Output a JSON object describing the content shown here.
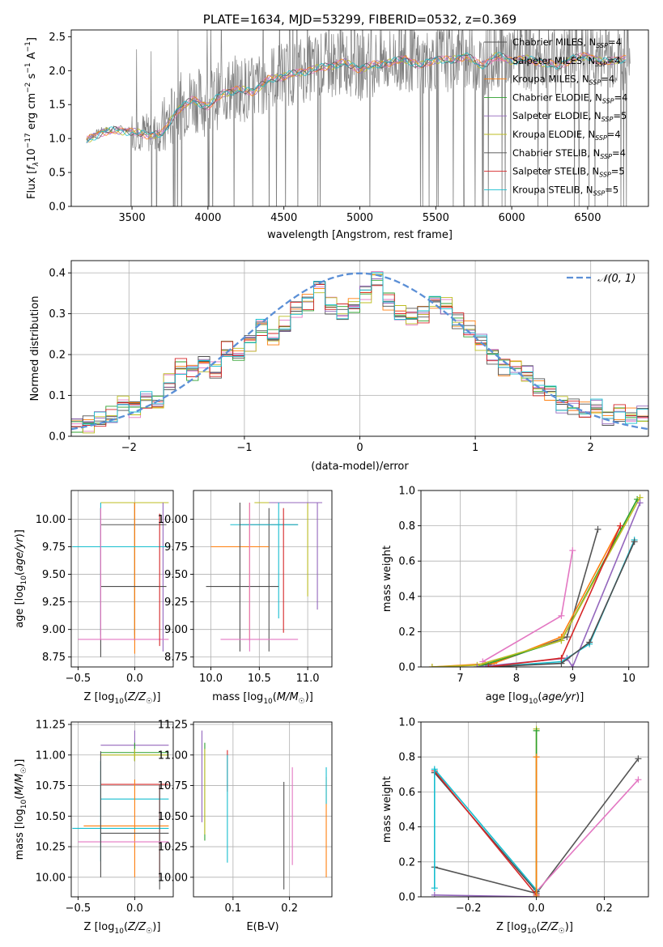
{
  "colors": {
    "Chabrier MILES": "#555555",
    "Salpeter MILES": "#e377c2",
    "Kroupa MILES": "#ff7f0e",
    "Chabrier ELODIE": "#2ca02c",
    "Salpeter ELODIE": "#9467bd",
    "Kroupa ELODIE": "#bcbd22",
    "Chabrier STELIB": "#4d4d4d",
    "Salpeter STELIB": "#d62728",
    "Kroupa STELIB": "#17becf",
    "gauss": "#5b8fd6"
  },
  "chart_data": [
    {
      "id": "spectrum",
      "type": "line",
      "title": "PLATE=1634, MJD=53299, FIBERID=0532, z=0.369",
      "xlabel": "wavelength [Angstrom, rest frame]",
      "ylabel": "Flux [f_λ 10^-17 erg cm^-2 s^-1 A^-1]",
      "xlim": [
        3100,
        6900
      ],
      "ylim": [
        0,
        2.6
      ],
      "xticks": [
        3500,
        4000,
        4500,
        5000,
        5500,
        6000,
        6500
      ],
      "yticks": [
        0.0,
        0.5,
        1.0,
        1.5,
        2.0,
        2.5
      ],
      "xtick_labels": [
        "3500",
        "4000",
        "4500",
        "5000",
        "5500",
        "6000",
        "6500"
      ],
      "ytick_labels": [
        "0.0",
        "0.5",
        "1.0",
        "1.5",
        "2.0",
        "2.5"
      ],
      "grid": false,
      "legend_position": "top-right",
      "data": {
        "x": [
          3200,
          3300,
          3400,
          3500,
          3600,
          3700,
          3800,
          3900,
          4000,
          4100,
          4200,
          4300,
          4400,
          4500,
          4600,
          4700,
          4800,
          4900,
          5000,
          5100,
          5200,
          5300,
          5400,
          5500,
          5600,
          5700,
          5800,
          5900,
          6000,
          6100,
          6200,
          6300,
          6400,
          6500,
          6600,
          6700,
          6750
        ],
        "y": [
          1.0,
          1.12,
          1.15,
          1.13,
          1.08,
          1.1,
          1.45,
          1.6,
          1.5,
          1.7,
          1.75,
          1.72,
          1.9,
          1.95,
          2.0,
          2.05,
          2.1,
          2.15,
          2.05,
          2.12,
          2.15,
          2.2,
          2.1,
          2.2,
          2.18,
          2.25,
          2.1,
          2.25,
          2.18,
          2.2,
          2.15,
          2.1,
          2.2,
          2.25,
          2.15,
          2.2,
          2.2
        ]
      },
      "legend": [
        {
          "name": "Chabrier MILES, N_SSP=4",
          "series": "Chabrier MILES"
        },
        {
          "name": "Salpeter MILES, N_SSP=4",
          "series": "Salpeter MILES"
        },
        {
          "name": "Kroupa MILES, N_SSP=4",
          "series": "Kroupa MILES"
        },
        {
          "name": "Chabrier ELODIE, N_SSP=4",
          "series": "Chabrier ELODIE"
        },
        {
          "name": "Salpeter ELODIE, N_SSP=5",
          "series": "Salpeter ELODIE"
        },
        {
          "name": "Kroupa ELODIE, N_SSP=4",
          "series": "Kroupa ELODIE"
        },
        {
          "name": "Chabrier STELIB, N_SSP=4",
          "series": "Chabrier STELIB"
        },
        {
          "name": "Salpeter STELIB, N_SSP=5",
          "series": "Salpeter STELIB"
        },
        {
          "name": "Kroupa STELIB, N_SSP=5",
          "series": "Kroupa STELIB"
        }
      ]
    },
    {
      "id": "residuals",
      "type": "histogram",
      "xlabel": "(data-model)/error",
      "ylabel": "Normed distribution",
      "xlim": [
        -2.5,
        2.5
      ],
      "ylim": [
        0,
        0.43
      ],
      "xticks": [
        -2,
        -1,
        0,
        1,
        2
      ],
      "yticks": [
        0.0,
        0.1,
        0.2,
        0.3,
        0.4
      ],
      "xtick_labels": [
        "−2",
        "−1",
        "0",
        "1",
        "2"
      ],
      "ytick_labels": [
        "0.0",
        "0.1",
        "0.2",
        "0.3",
        "0.4"
      ],
      "grid": true,
      "legend_position": "top-right",
      "legend": [
        "𝒩(0, 1)"
      ],
      "bin_width": 0.1,
      "bin_start": -2.5,
      "values": [
        0.03,
        0.03,
        0.04,
        0.05,
        0.08,
        0.07,
        0.09,
        0.08,
        0.13,
        0.17,
        0.16,
        0.18,
        0.16,
        0.21,
        0.2,
        0.23,
        0.27,
        0.24,
        0.27,
        0.31,
        0.33,
        0.37,
        0.32,
        0.3,
        0.32,
        0.35,
        0.39,
        0.33,
        0.3,
        0.29,
        0.3,
        0.33,
        0.32,
        0.28,
        0.26,
        0.23,
        0.2,
        0.17,
        0.17,
        0.15,
        0.12,
        0.11,
        0.08,
        0.07,
        0.06,
        0.07,
        0.05,
        0.06,
        0.05,
        0.05
      ],
      "gauss": {
        "mu": 0,
        "sigma": 1
      }
    },
    {
      "id": "age_vs_Z",
      "type": "errorbar",
      "xlabel": "Z [log10(Z/Z☉)]",
      "ylabel": "age  [log10(age/yr)]",
      "xlim": [
        -0.56,
        0.34
      ],
      "ylim": [
        8.66,
        10.26
      ],
      "xticks": [
        -0.5,
        0.0
      ],
      "yticks": [
        8.75,
        9.0,
        9.25,
        9.5,
        9.75,
        10.0
      ],
      "xtick_labels": [
        "−0.5",
        "0.0"
      ],
      "ytick_labels": [
        "8.75",
        "9.00",
        "9.25",
        "9.50",
        "9.75",
        "10.00"
      ],
      "grid": true,
      "points": [
        {
          "series": "Kroupa ELODIE",
          "x": 0.0,
          "y": 10.15,
          "xlo": -0.3,
          "xhi": 0.3,
          "ylo": 8.95,
          "yhi": 10.15
        },
        {
          "series": "Salpeter ELODIE",
          "x": 0.25,
          "y": 10.15,
          "xlo": 0.25,
          "xhi": 0.25,
          "ylo": 8.8,
          "yhi": 10.15
        },
        {
          "series": "Chabrier MILES",
          "x": 0.0,
          "y": 9.95,
          "xlo": -0.3,
          "xhi": 0.28,
          "ylo": 8.9,
          "yhi": 10.15
        },
        {
          "series": "Kroupa MILES",
          "x": 0.0,
          "y": 9.75,
          "xlo": -0.55,
          "xhi": 0.3,
          "ylo": 8.78,
          "yhi": 10.15
        },
        {
          "series": "Kroupa STELIB",
          "x": -0.3,
          "y": 9.75,
          "xlo": -0.55,
          "xhi": 0.3,
          "ylo": 8.95,
          "yhi": 10.15
        },
        {
          "series": "Chabrier STELIB",
          "x": -0.3,
          "y": 9.39,
          "xlo": -0.3,
          "xhi": 0.28,
          "ylo": 8.75,
          "yhi": 10.1
        },
        {
          "series": "Salpeter MILES",
          "x": -0.3,
          "y": 8.91,
          "xlo": -0.5,
          "xhi": 0.3,
          "ylo": 8.91,
          "yhi": 10.1
        },
        {
          "series": "Salpeter STELIB",
          "x": 0.22,
          "y": 9.95,
          "xlo": 0.22,
          "xhi": 0.22,
          "ylo": 8.85,
          "yhi": 10.05
        }
      ]
    },
    {
      "id": "age_vs_mass",
      "type": "errorbar",
      "xlabel": "mass [log10(M/M☉)]",
      "ylabel": "",
      "xlim": [
        9.82,
        11.25
      ],
      "ylim": [
        8.66,
        10.26
      ],
      "xticks": [
        10.0,
        10.5,
        11.0
      ],
      "yticks": [
        8.75,
        9.0,
        9.25,
        9.5,
        9.75,
        10.0
      ],
      "xtick_labels": [
        "10.0",
        "10.5",
        "11.0"
      ],
      "ytick_labels": [
        "8.75",
        "9.00",
        "9.25",
        "9.50",
        "9.75",
        "10.00"
      ],
      "grid": true,
      "points": [
        {
          "series": "Kroupa ELODIE",
          "x": 11.0,
          "y": 10.15,
          "xlo": 10.45,
          "xhi": 11.0,
          "ylo": 9.3,
          "yhi": 10.15
        },
        {
          "series": "Salpeter ELODIE",
          "x": 11.1,
          "y": 10.15,
          "xlo": 10.6,
          "xhi": 11.15,
          "ylo": 9.18,
          "yhi": 10.15
        },
        {
          "series": "Chabrier MILES",
          "x": 10.6,
          "y": 9.95,
          "xlo": 10.3,
          "xhi": 10.9,
          "ylo": 8.8,
          "yhi": 10.1
        },
        {
          "series": "Kroupa MILES",
          "x": 10.4,
          "y": 9.75,
          "xlo": 10.0,
          "xhi": 10.6,
          "ylo": 8.9,
          "yhi": 10.15
        },
        {
          "series": "Kroupa STELIB",
          "x": 10.7,
          "y": 9.95,
          "xlo": 10.2,
          "xhi": 10.9,
          "ylo": 9.1,
          "yhi": 10.15
        },
        {
          "series": "Chabrier STELIB",
          "x": 10.3,
          "y": 9.39,
          "xlo": 9.95,
          "xhi": 10.7,
          "ylo": 8.8,
          "yhi": 10.15
        },
        {
          "series": "Salpeter MILES",
          "x": 10.4,
          "y": 8.91,
          "xlo": 10.1,
          "xhi": 10.9,
          "ylo": 8.8,
          "yhi": 10.15
        },
        {
          "series": "Salpeter STELIB",
          "x": 10.75,
          "y": 10.1,
          "xlo": 10.75,
          "xhi": 10.75,
          "ylo": 8.97,
          "yhi": 10.1
        }
      ]
    },
    {
      "id": "massweight_vs_age",
      "type": "line",
      "xlabel": "age  [log10(age/yr)]",
      "ylabel": "mass weight",
      "xlim": [
        6.3,
        10.35
      ],
      "ylim": [
        0,
        1.0
      ],
      "xticks": [
        7,
        8,
        9,
        10
      ],
      "yticks": [
        0.0,
        0.2,
        0.4,
        0.6,
        0.8,
        1.0
      ],
      "xtick_labels": [
        "7",
        "8",
        "9",
        "10"
      ],
      "ytick_labels": [
        "0.0",
        "0.2",
        "0.4",
        "0.6",
        "0.8",
        "1.0"
      ],
      "grid": true,
      "series": [
        {
          "name": "Salpeter MILES",
          "x": [
            7.4,
            8.8,
            9.0
          ],
          "y": [
            0.03,
            0.29,
            0.66
          ]
        },
        {
          "name": "Chabrier MILES",
          "x": [
            7.5,
            8.9,
            9.45
          ],
          "y": [
            0.01,
            0.17,
            0.78
          ]
        },
        {
          "name": "Kroupa MILES",
          "x": [
            6.5,
            7.6,
            8.8,
            9.85
          ],
          "y": [
            0.0,
            0.02,
            0.17,
            0.8
          ]
        },
        {
          "name": "Chabrier ELODIE",
          "x": [
            7.3,
            8.8,
            10.15
          ],
          "y": [
            0.0,
            0.15,
            0.95
          ]
        },
        {
          "name": "Kroupa ELODIE",
          "x": [
            6.5,
            7.3,
            8.8,
            10.2
          ],
          "y": [
            0.0,
            0.01,
            0.15,
            0.96
          ]
        },
        {
          "name": "Salpeter ELODIE",
          "x": [
            7.3,
            8.9,
            9.0,
            10.2
          ],
          "y": [
            0.0,
            0.05,
            0.0,
            0.93
          ]
        },
        {
          "name": "Kroupa STELIB",
          "x": [
            7.5,
            8.8,
            9.3,
            10.1
          ],
          "y": [
            0.0,
            0.03,
            0.13,
            0.72
          ]
        },
        {
          "name": "Chabrier STELIB",
          "x": [
            7.5,
            8.8,
            9.3,
            10.1
          ],
          "y": [
            0.0,
            0.02,
            0.14,
            0.71
          ]
        },
        {
          "name": "Salpeter STELIB",
          "x": [
            7.5,
            8.8,
            9.85
          ],
          "y": [
            0.0,
            0.05,
            0.8
          ]
        }
      ]
    },
    {
      "id": "mass_vs_Z",
      "type": "errorbar",
      "xlabel": "Z [log10(Z/Z☉)]",
      "ylabel": "mass [log10(M/M☉)]",
      "xlim": [
        -0.56,
        0.34
      ],
      "ylim": [
        9.84,
        11.27
      ],
      "xticks": [
        -0.5,
        0.0
      ],
      "yticks": [
        10.0,
        10.25,
        10.5,
        10.75,
        11.0,
        11.25
      ],
      "xtick_labels": [
        "−0.5",
        "0.0"
      ],
      "ytick_labels": [
        "10.00",
        "10.25",
        "10.50",
        "10.75",
        "11.00",
        "11.25"
      ],
      "grid": true,
      "points": [
        {
          "series": "Salpeter ELODIE",
          "x": 0.0,
          "y": 11.08,
          "xlo": -0.3,
          "xhi": 0.3,
          "ylo": 10.95,
          "yhi": 11.2
        },
        {
          "series": "Chabrier ELODIE",
          "x": 0.0,
          "y": 11.02,
          "xlo": -0.3,
          "xhi": 0.3,
          "ylo": 10.95,
          "yhi": 11.1
        },
        {
          "series": "Kroupa ELODIE",
          "x": 0.0,
          "y": 11.0,
          "xlo": -0.3,
          "xhi": 0.3,
          "ylo": 10.95,
          "yhi": 11.05
        },
        {
          "series": "Salpeter STELIB",
          "x": 0.22,
          "y": 10.76,
          "xlo": -0.3,
          "xhi": 0.3,
          "ylo": 10.0,
          "yhi": 10.76
        },
        {
          "series": "Kroupa STELIB",
          "x": -0.3,
          "y": 10.64,
          "xlo": -0.3,
          "xhi": 0.3,
          "ylo": 10.13,
          "yhi": 10.95
        },
        {
          "series": "Kroupa MILES",
          "x": 0.0,
          "y": 10.42,
          "xlo": -0.45,
          "xhi": 0.3,
          "ylo": 10.0,
          "yhi": 10.8
        },
        {
          "series": "Kroupa STELIB",
          "x": 0.0,
          "y": 10.4,
          "xlo": -0.55,
          "xhi": 0.3,
          "ylo": 10.4,
          "yhi": 10.4
        },
        {
          "series": "Chabrier MILES",
          "x": 0.22,
          "y": 10.36,
          "xlo": -0.3,
          "xhi": 0.3,
          "ylo": 9.9,
          "yhi": 10.76
        },
        {
          "series": "Salpeter MILES",
          "x": 0.0,
          "y": 10.29,
          "xlo": -0.5,
          "xhi": 0.3,
          "ylo": 10.29,
          "yhi": 10.29
        },
        {
          "series": "Chabrier STELIB",
          "x": -0.3,
          "y": 10.36,
          "xlo": -0.3,
          "xhi": -0.3,
          "ylo": 10.0,
          "yhi": 11.03
        }
      ]
    },
    {
      "id": "mass_vs_ebv",
      "type": "errorbar",
      "xlabel": "E(B-V)",
      "ylabel": "",
      "xlim": [
        0.03,
        0.275
      ],
      "ylim": [
        9.84,
        11.27
      ],
      "xticks": [
        0.1,
        0.2
      ],
      "yticks": [
        10.0,
        10.25,
        10.5,
        10.75,
        11.0,
        11.25
      ],
      "xtick_labels": [
        "0.1",
        "0.2"
      ],
      "ytick_labels": [
        "10.00",
        "10.25",
        "10.50",
        "10.75",
        "11.00",
        "11.25"
      ],
      "grid": true,
      "points": [
        {
          "series": "Salpeter ELODIE",
          "x": 0.045,
          "y": 10.9,
          "xlo": 0.045,
          "xhi": 0.045,
          "ylo": 10.45,
          "yhi": 11.2
        },
        {
          "series": "Chabrier ELODIE",
          "x": 0.05,
          "y": 10.8,
          "xlo": 0.05,
          "xhi": 0.05,
          "ylo": 10.3,
          "yhi": 11.1
        },
        {
          "series": "Kroupa ELODIE",
          "x": 0.05,
          "y": 10.7,
          "xlo": 0.05,
          "xhi": 0.05,
          "ylo": 10.35,
          "yhi": 11.05
        },
        {
          "series": "Salpeter STELIB",
          "x": 0.09,
          "y": 10.9,
          "xlo": 0.09,
          "xhi": 0.09,
          "ylo": 10.7,
          "yhi": 11.04
        },
        {
          "series": "Kroupa STELIB",
          "x": 0.09,
          "y": 10.6,
          "xlo": 0.09,
          "xhi": 0.09,
          "ylo": 10.12,
          "yhi": 11.0
        },
        {
          "series": "Chabrier MILES",
          "x": 0.19,
          "y": 10.3,
          "xlo": 0.19,
          "xhi": 0.19,
          "ylo": 9.9,
          "yhi": 10.78
        },
        {
          "series": "Salpeter MILES",
          "x": 0.205,
          "y": 10.5,
          "xlo": 0.205,
          "xhi": 0.205,
          "ylo": 10.1,
          "yhi": 10.9
        },
        {
          "series": "Kroupa MILES",
          "x": 0.265,
          "y": 10.4,
          "xlo": 0.265,
          "xhi": 0.265,
          "ylo": 10.0,
          "yhi": 10.82
        },
        {
          "series": "Kroupa STELIB",
          "x": 0.265,
          "y": 10.8,
          "xlo": 0.265,
          "xhi": 0.265,
          "ylo": 10.6,
          "yhi": 10.9
        }
      ]
    },
    {
      "id": "massweight_vs_Z",
      "type": "line",
      "xlabel": "Z [log10(Z/Z☉)]",
      "ylabel": "mass weight",
      "xlim": [
        -0.34,
        0.33
      ],
      "ylim": [
        0,
        1.0
      ],
      "xticks": [
        -0.2,
        0.0,
        0.2
      ],
      "yticks": [
        0.0,
        0.2,
        0.4,
        0.6,
        0.8,
        1.0
      ],
      "xtick_labels": [
        "−0.2",
        "0.0",
        "0.2"
      ],
      "ytick_labels": [
        "0.0",
        "0.2",
        "0.4",
        "0.6",
        "0.8",
        "1.0"
      ],
      "grid": true,
      "series": [
        {
          "name": "Chabrier MILES",
          "x": [
            -0.3,
            0.0,
            0.3
          ],
          "y": [
            0.17,
            0.02,
            0.79
          ]
        },
        {
          "name": "Salpeter MILES",
          "x": [
            0.0,
            0.3
          ],
          "y": [
            0.03,
            0.67
          ]
        },
        {
          "name": "Salpeter ELODIE",
          "x": [
            -0.3,
            0.0
          ],
          "y": [
            0.01,
            0.0
          ]
        },
        {
          "name": "Chabrier STELIB",
          "x": [
            -0.3,
            0.0
          ],
          "y": [
            0.71,
            0.03
          ]
        },
        {
          "name": "Salpeter STELIB",
          "x": [
            -0.3,
            0.0
          ],
          "y": [
            0.72,
            0.01
          ]
        },
        {
          "name": "Kroupa STELIB",
          "x": [
            -0.3,
            -0.3,
            0.0
          ],
          "y": [
            0.05,
            0.73,
            0.04
          ]
        },
        {
          "name": "Kroupa ELODIE",
          "x": [
            0.0,
            0.0
          ],
          "y": [
            0.0,
            0.96
          ]
        },
        {
          "name": "Chabrier ELODIE",
          "x": [
            0.0,
            0.0
          ],
          "y": [
            0.0,
            0.95
          ]
        },
        {
          "name": "Kroupa MILES",
          "x": [
            0.0,
            0.0
          ],
          "y": [
            0.0,
            0.8
          ]
        }
      ]
    }
  ]
}
